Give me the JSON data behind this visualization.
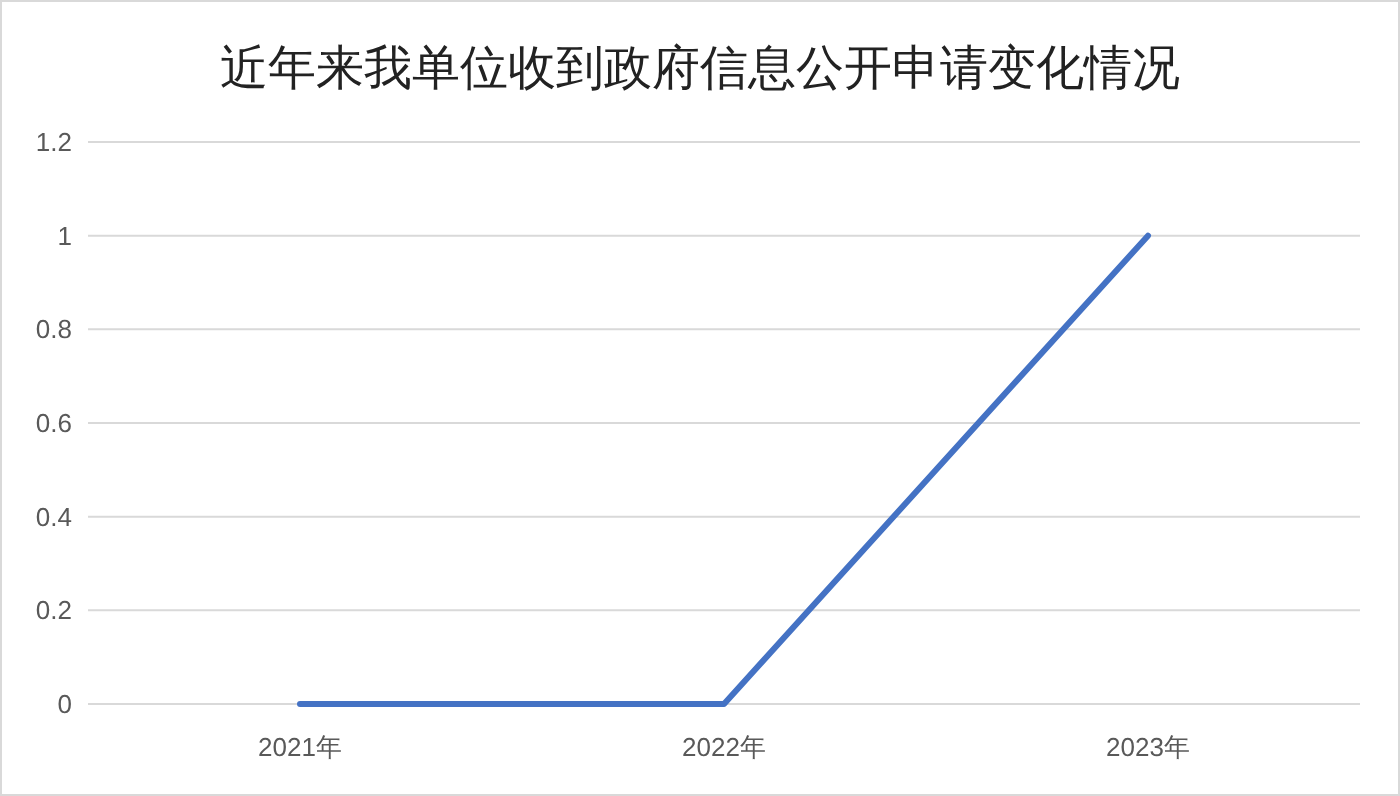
{
  "chart_data": {
    "type": "line",
    "title": "近年来我单位收到政府信息公开申请变化情况",
    "categories": [
      "2021年",
      "2022年",
      "2023年"
    ],
    "series": [
      {
        "color": "#4472c4",
        "values": [
          0,
          0,
          1
        ]
      }
    ],
    "ylim": [
      0,
      1.2
    ],
    "yticks": [
      0,
      0.2,
      0.4,
      0.6,
      0.8,
      1,
      1.2
    ],
    "grid": "y",
    "marker": "none",
    "line_style": "solid"
  }
}
